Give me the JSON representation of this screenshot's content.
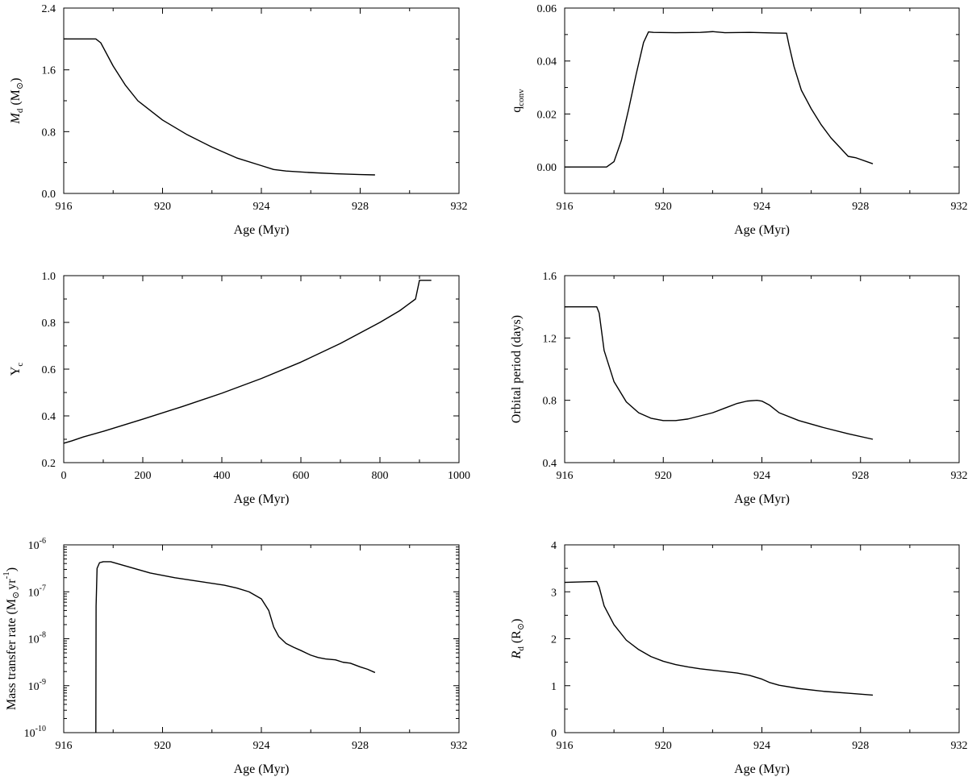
{
  "chart_data": [
    {
      "id": "md",
      "type": "line",
      "xlabel": "Age (Myr)",
      "ylabel": "M_d (M_⊙)",
      "ylabel_parts": {
        "main": "M",
        "sub": "d",
        "unit": "(M",
        "unit_sub": "⊙",
        "close": ")"
      },
      "xlim": [
        916,
        932
      ],
      "ylim": [
        0.0,
        2.4
      ],
      "xticks": [
        916,
        920,
        924,
        928,
        932
      ],
      "xtick_labels": [
        "916",
        "920",
        "924",
        "928",
        "932"
      ],
      "yticks": [
        0.0,
        0.8,
        1.6,
        2.4
      ],
      "ytick_labels": [
        "0.0",
        "0.8",
        "1.6",
        "2.4"
      ],
      "series": [
        {
          "name": "Md",
          "x": [
            916.0,
            917.3,
            917.5,
            918.0,
            918.5,
            919.0,
            920.0,
            921.0,
            922.0,
            923.0,
            924.0,
            924.5,
            925.0,
            926.0,
            927.0,
            928.0,
            928.6
          ],
          "y": [
            2.0,
            2.0,
            1.95,
            1.65,
            1.4,
            1.2,
            0.95,
            0.76,
            0.6,
            0.46,
            0.36,
            0.31,
            0.29,
            0.27,
            0.255,
            0.245,
            0.24
          ]
        }
      ]
    },
    {
      "id": "qconv",
      "type": "line",
      "xlabel": "Age (Myr)",
      "ylabel": "q_conv",
      "ylabel_parts": {
        "main": "q",
        "sub": "conv"
      },
      "xlim": [
        916,
        932
      ],
      "ylim": [
        -0.01,
        0.06
      ],
      "xticks": [
        916,
        920,
        924,
        928,
        932
      ],
      "xtick_labels": [
        "916",
        "920",
        "924",
        "928",
        "932"
      ],
      "yticks": [
        0.0,
        0.02,
        0.04,
        0.06
      ],
      "ytick_labels": [
        "0.00",
        "0.02",
        "0.04",
        "0.06"
      ],
      "series": [
        {
          "name": "qconv",
          "x": [
            916.0,
            917.7,
            918.0,
            918.3,
            918.6,
            918.9,
            919.2,
            919.4,
            919.6,
            920.5,
            921.5,
            922.0,
            922.5,
            923.5,
            924.5,
            925.0,
            925.1,
            925.3,
            925.6,
            926.0,
            926.4,
            926.8,
            927.2,
            927.5,
            927.8,
            928.5
          ],
          "y": [
            0.0,
            0.0,
            0.002,
            0.01,
            0.022,
            0.035,
            0.047,
            0.051,
            0.0508,
            0.0507,
            0.0508,
            0.0511,
            0.0507,
            0.0508,
            0.0506,
            0.0505,
            0.046,
            0.038,
            0.029,
            0.022,
            0.016,
            0.011,
            0.007,
            0.004,
            0.0035,
            0.0012
          ]
        }
      ]
    },
    {
      "id": "yc",
      "type": "line",
      "xlabel": "Age (Myr)",
      "ylabel": "Y_c",
      "ylabel_parts": {
        "main": "Y",
        "sub": "c"
      },
      "xlim": [
        0,
        1000
      ],
      "ylim": [
        0.2,
        1.0
      ],
      "xticks": [
        0,
        200,
        400,
        600,
        800,
        1000
      ],
      "xtick_labels": [
        "0",
        "200",
        "400",
        "600",
        "800",
        "1000"
      ],
      "yticks": [
        0.2,
        0.4,
        0.6,
        0.8,
        1.0
      ],
      "ytick_labels": [
        "0.2",
        "0.4",
        "0.6",
        "0.8",
        "1.0"
      ],
      "series": [
        {
          "name": "Yc",
          "x": [
            0,
            20,
            50,
            100,
            200,
            300,
            400,
            500,
            600,
            700,
            800,
            850,
            890,
            900,
            930
          ],
          "y": [
            0.283,
            0.293,
            0.31,
            0.334,
            0.386,
            0.44,
            0.497,
            0.56,
            0.63,
            0.71,
            0.8,
            0.85,
            0.9,
            0.98,
            0.98
          ]
        }
      ]
    },
    {
      "id": "porb",
      "type": "line",
      "xlabel": "Age (Myr)",
      "ylabel": "Orbital period (days)",
      "xlim": [
        916,
        932
      ],
      "ylim": [
        0.4,
        1.6
      ],
      "xticks": [
        916,
        920,
        924,
        928,
        932
      ],
      "xtick_labels": [
        "916",
        "920",
        "924",
        "928",
        "932"
      ],
      "yticks": [
        0.4,
        0.8,
        1.2,
        1.6
      ],
      "ytick_labels": [
        "0.4",
        "0.8",
        "1.2",
        "1.6"
      ],
      "series": [
        {
          "name": "Porb",
          "x": [
            916.0,
            917.3,
            917.4,
            917.6,
            918.0,
            918.5,
            919.0,
            919.5,
            920.0,
            920.5,
            921.0,
            921.5,
            922.0,
            922.5,
            923.0,
            923.4,
            923.8,
            924.0,
            924.3,
            924.7,
            925.5,
            926.5,
            927.5,
            928.5
          ],
          "y": [
            1.4,
            1.4,
            1.36,
            1.12,
            0.92,
            0.79,
            0.72,
            0.685,
            0.67,
            0.67,
            0.68,
            0.7,
            0.72,
            0.75,
            0.78,
            0.795,
            0.8,
            0.795,
            0.77,
            0.72,
            0.67,
            0.625,
            0.585,
            0.55
          ]
        }
      ]
    },
    {
      "id": "mdot",
      "type": "line",
      "yscale": "log",
      "xlabel": "Age (Myr)",
      "ylabel": "Mass transfer rate (M_⊙ yr^-1)",
      "ylabel_parts": {
        "main": "Mass transfer rate (M",
        "sub": "⊙",
        "mid": "yr",
        "sup": "-1",
        "close": ")"
      },
      "xlim": [
        916,
        932
      ],
      "ylim_log10": [
        -10,
        -6
      ],
      "xticks": [
        916,
        920,
        924,
        928,
        932
      ],
      "xtick_labels": [
        "916",
        "920",
        "924",
        "928",
        "932"
      ],
      "yticks_log10": [
        -10,
        -9,
        -8,
        -7,
        -6
      ],
      "ytick_labels": [
        {
          "base": "10",
          "exp": "-10"
        },
        {
          "base": "10",
          "exp": "-9"
        },
        {
          "base": "10",
          "exp": "-8"
        },
        {
          "base": "10",
          "exp": "-7"
        },
        {
          "base": "10",
          "exp": "-6"
        }
      ],
      "series": [
        {
          "name": "Mdot",
          "x": [
            917.3,
            917.31,
            917.35,
            917.45,
            917.6,
            917.9,
            918.5,
            919.5,
            920.5,
            921.5,
            922.5,
            923.0,
            923.5,
            924.0,
            924.3,
            924.5,
            924.7,
            925.0,
            925.3,
            925.6,
            926.0,
            926.3,
            926.6,
            927.0,
            927.3,
            927.6,
            928.0,
            928.3,
            928.6
          ],
          "log10_y": [
            -10.0,
            -7.3,
            -6.5,
            -6.38,
            -6.36,
            -6.36,
            -6.45,
            -6.6,
            -6.7,
            -6.78,
            -6.86,
            -6.92,
            -7.0,
            -7.15,
            -7.4,
            -7.75,
            -7.95,
            -8.1,
            -8.18,
            -8.25,
            -8.35,
            -8.4,
            -8.43,
            -8.45,
            -8.5,
            -8.52,
            -8.6,
            -8.65,
            -8.72
          ]
        }
      ]
    },
    {
      "id": "rd",
      "type": "line",
      "xlabel": "Age (Myr)",
      "ylabel": "R_d (R_⊙)",
      "ylabel_parts": {
        "main": "R",
        "sub": "d",
        "unit": "(R",
        "unit_sub": "⊙",
        "close": ")"
      },
      "xlim": [
        916,
        932
      ],
      "ylim": [
        0,
        4
      ],
      "xticks": [
        916,
        920,
        924,
        928,
        932
      ],
      "xtick_labels": [
        "916",
        "920",
        "924",
        "928",
        "932"
      ],
      "yticks": [
        0,
        1,
        2,
        3,
        4
      ],
      "ytick_labels": [
        "0",
        "1",
        "2",
        "3",
        "4"
      ],
      "series": [
        {
          "name": "Rd",
          "x": [
            916.0,
            917.3,
            917.4,
            917.6,
            918.0,
            918.5,
            919.0,
            919.5,
            920.0,
            920.5,
            921.0,
            921.5,
            922.0,
            922.5,
            923.0,
            923.5,
            924.0,
            924.3,
            924.7,
            925.5,
            926.5,
            927.5,
            928.5
          ],
          "y": [
            3.2,
            3.22,
            3.1,
            2.7,
            2.3,
            1.97,
            1.77,
            1.62,
            1.52,
            1.45,
            1.4,
            1.36,
            1.33,
            1.3,
            1.27,
            1.22,
            1.14,
            1.07,
            1.01,
            0.94,
            0.88,
            0.84,
            0.8
          ]
        }
      ]
    }
  ]
}
